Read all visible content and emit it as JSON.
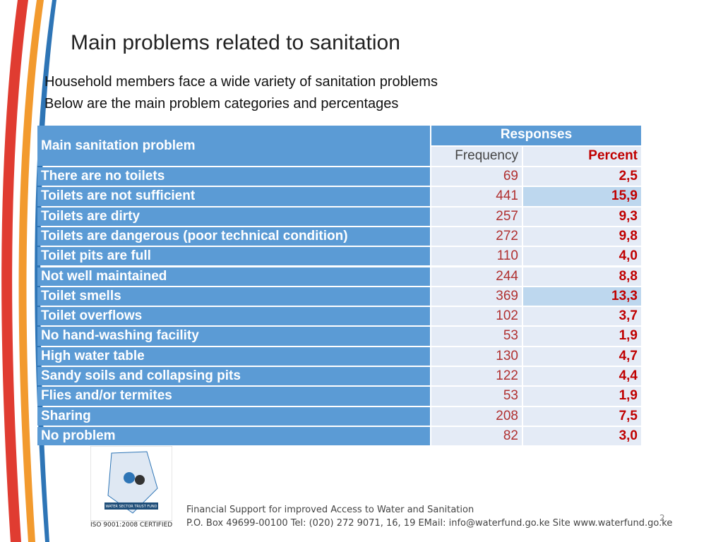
{
  "header": {
    "title": "Main problems related to sanitation",
    "lines": [
      "Household members face a wide variety of sanitation problems",
      "Below are the main problem categories and percentages"
    ]
  },
  "table": {
    "columns": {
      "problem": "Main sanitation problem",
      "group": "Responses",
      "frequency": "Frequency",
      "percent": "Percent"
    },
    "rows": [
      [
        "There are no toilets",
        69,
        "2,5"
      ],
      [
        "Toilets are not sufficient",
        441,
        "15,9"
      ],
      [
        "Toilets are dirty",
        257,
        "9,3"
      ],
      [
        "Toilets are dangerous (poor technical condition)",
        272,
        "9,8"
      ],
      [
        "Toilet pits are full",
        110,
        "4,0"
      ],
      [
        "Not well maintained",
        244,
        "8,8"
      ],
      [
        "Toilet smells",
        369,
        "13,3"
      ],
      [
        "Toilet overflows",
        102,
        "3,7"
      ],
      [
        "No hand-washing facility",
        53,
        "1,9"
      ],
      [
        "High water table",
        130,
        "4,7"
      ],
      [
        "Sandy soils and collapsing pits",
        122,
        "4,4"
      ],
      [
        "Flies and/or termites",
        53,
        "1,9"
      ],
      [
        "Sharing",
        208,
        "7,5"
      ],
      [
        "No problem",
        82,
        "3,0"
      ]
    ]
  },
  "footer": {
    "certification": "ISO 9001:2008 CERTIFIED",
    "logo_text": "WATER SECTOR TRUST FUND",
    "line1": "Financial Support for improved Access to Water and Sanitation",
    "line2": "P.O. Box 49699-00100 Tel: (020) 272 9071, 16, 19 EMail: info@waterfund.go.ke Site www.waterfund.go.ke",
    "page": "2"
  }
}
